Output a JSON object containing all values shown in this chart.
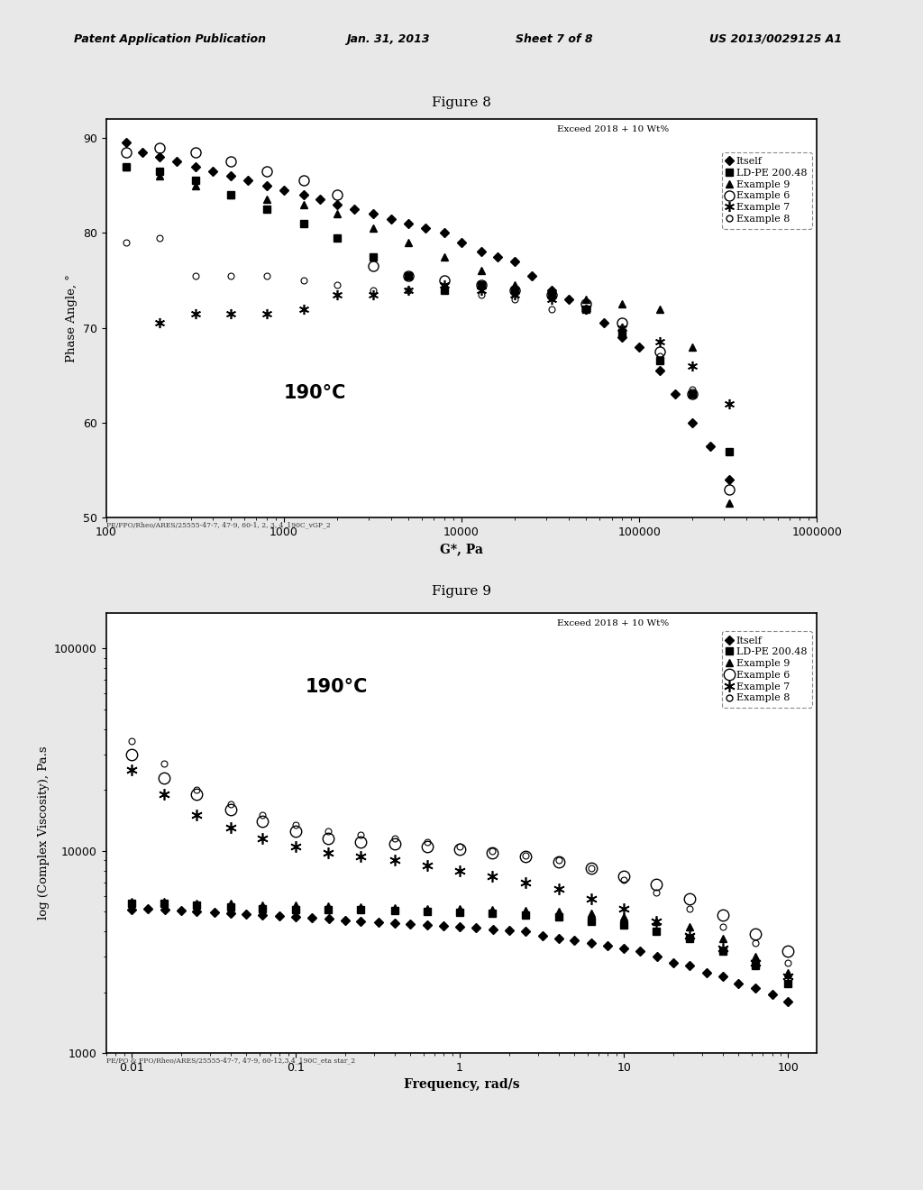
{
  "fig8_title": "Figure 8",
  "fig9_title": "Figure 9",
  "header_line1": "Patent Application Publication",
  "header_line2": "Jan. 31, 2013",
  "header_line3": "Sheet 7 of 8",
  "header_line4": "US 2013/0029125 A1",
  "legend_title": "Exceed 2018 + 10 Wt%",
  "temperature_label": "190°C",
  "fig8_xlabel": "G*, Pa",
  "fig8_ylabel": "Phase Angle, °",
  "fig9_xlabel": "Frequency, rad/s",
  "fig9_ylabel": "log (Complex Viscosity), Pa.s",
  "fig8_footnote": "PE/FPO/Rheo/ARES/25555-47-7, 47-9, 60-1, 2, 3, 4_190C_vGP_2",
  "fig9_footnote": "PE/PO & FPO/Rheo/ARES/25555-47-7, 47-9, 60-12,3,4_190C_eta star_2",
  "series_labels": [
    "Itself",
    "LD-PE 200.48",
    "Example 9",
    "Example 6",
    "Example 7",
    "Example 8"
  ],
  "fig8_itself_x": [
    130,
    160,
    200,
    250,
    320,
    400,
    500,
    630,
    800,
    1000,
    1300,
    1600,
    2000,
    2500,
    3200,
    4000,
    5000,
    6300,
    8000,
    10000,
    13000,
    16000,
    20000,
    25000,
    32000,
    40000,
    50000,
    63000,
    80000,
    100000,
    130000,
    160000,
    200000,
    250000,
    320000
  ],
  "fig8_itself_y": [
    89.5,
    88.5,
    88.0,
    87.5,
    87.0,
    86.5,
    86.0,
    85.5,
    85.0,
    84.5,
    84.0,
    83.5,
    83.0,
    82.5,
    82.0,
    81.5,
    81.0,
    80.5,
    80.0,
    79.0,
    78.0,
    77.5,
    77.0,
    75.5,
    74.0,
    73.0,
    72.0,
    70.5,
    69.0,
    68.0,
    65.5,
    63.0,
    60.0,
    57.5,
    54.0
  ],
  "fig8_ldpe_x": [
    130,
    200,
    320,
    500,
    800,
    1300,
    2000,
    3200,
    5000,
    8000,
    13000,
    20000,
    32000,
    50000,
    80000,
    130000,
    200000,
    320000
  ],
  "fig8_ldpe_y": [
    87.0,
    86.5,
    85.5,
    84.0,
    82.5,
    81.0,
    79.5,
    77.5,
    75.5,
    74.0,
    74.5,
    74.0,
    73.5,
    72.0,
    69.5,
    66.5,
    63.0,
    57.0
  ],
  "fig8_ex9_x": [
    130,
    200,
    320,
    500,
    800,
    1300,
    2000,
    3200,
    5000,
    8000,
    13000,
    20000,
    32000,
    50000,
    80000,
    130000,
    200000,
    320000
  ],
  "fig8_ex9_y": [
    87.0,
    86.0,
    85.0,
    84.0,
    83.5,
    83.0,
    82.0,
    80.5,
    79.0,
    77.5,
    76.0,
    74.5,
    73.5,
    73.0,
    72.5,
    72.0,
    68.0,
    51.5
  ],
  "fig8_ex6_x": [
    130,
    200,
    320,
    500,
    800,
    1300,
    2000,
    3200,
    5000,
    8000,
    13000,
    20000,
    32000,
    50000,
    80000,
    130000,
    200000,
    320000
  ],
  "fig8_ex6_y": [
    88.5,
    89.0,
    88.5,
    87.5,
    86.5,
    85.5,
    84.0,
    76.5,
    75.5,
    75.0,
    74.5,
    74.0,
    73.5,
    72.5,
    70.5,
    67.5,
    63.0,
    53.0
  ],
  "fig8_ex7_x": [
    200,
    320,
    500,
    800,
    1300,
    2000,
    3200,
    5000,
    8000,
    13000,
    20000,
    32000,
    50000,
    80000,
    130000,
    200000,
    320000
  ],
  "fig8_ex7_y": [
    70.5,
    71.5,
    71.5,
    71.5,
    72.0,
    73.5,
    73.5,
    74.0,
    74.5,
    74.0,
    73.5,
    73.0,
    72.0,
    70.0,
    68.5,
    66.0,
    62.0
  ],
  "fig8_ex8_x": [
    130,
    200,
    320,
    500,
    800,
    1300,
    2000,
    3200,
    5000,
    8000,
    13000,
    20000,
    32000,
    50000,
    80000,
    130000,
    200000,
    320000
  ],
  "fig8_ex8_y": [
    79.0,
    79.5,
    75.5,
    75.5,
    75.5,
    75.0,
    74.5,
    74.0,
    74.0,
    74.0,
    73.5,
    73.0,
    72.0,
    72.0,
    70.0,
    67.0,
    63.5,
    57.0
  ],
  "fig9_itself_x": [
    0.01,
    0.0126,
    0.016,
    0.02,
    0.025,
    0.032,
    0.04,
    0.05,
    0.063,
    0.08,
    0.1,
    0.126,
    0.16,
    0.2,
    0.25,
    0.32,
    0.4,
    0.5,
    0.63,
    0.8,
    1.0,
    1.26,
    1.6,
    2.0,
    2.5,
    3.2,
    4.0,
    5.0,
    6.3,
    8.0,
    10.0,
    12.6,
    16.0,
    20.0,
    25.0,
    32.0,
    40.0,
    50.0,
    63.0,
    80.0,
    100.0
  ],
  "fig9_itself_y": [
    5100,
    5200,
    5100,
    5050,
    5000,
    4950,
    4900,
    4850,
    4800,
    4750,
    4700,
    4650,
    4600,
    4550,
    4500,
    4450,
    4400,
    4350,
    4300,
    4250,
    4200,
    4150,
    4100,
    4050,
    4000,
    3800,
    3700,
    3600,
    3500,
    3400,
    3300,
    3200,
    3000,
    2800,
    2700,
    2500,
    2400,
    2200,
    2100,
    1950,
    1800
  ],
  "fig9_ldpe_x": [
    0.01,
    0.0158,
    0.025,
    0.04,
    0.063,
    0.1,
    0.158,
    0.25,
    0.4,
    0.63,
    1.0,
    1.58,
    2.5,
    4.0,
    6.3,
    10.0,
    15.8,
    25.0,
    40.0,
    63.0,
    100.0
  ],
  "fig9_ldpe_y": [
    5500,
    5500,
    5400,
    5300,
    5200,
    5100,
    5100,
    5100,
    5050,
    5000,
    4950,
    4900,
    4800,
    4700,
    4500,
    4300,
    4000,
    3700,
    3200,
    2700,
    2200
  ],
  "fig9_ex9_x": [
    0.01,
    0.0158,
    0.025,
    0.04,
    0.063,
    0.1,
    0.158,
    0.25,
    0.4,
    0.63,
    1.0,
    1.58,
    2.5,
    4.0,
    6.3,
    10.0,
    15.8,
    25.0,
    40.0,
    63.0,
    100.0
  ],
  "fig9_ex9_y": [
    5600,
    5600,
    5500,
    5500,
    5400,
    5400,
    5350,
    5300,
    5250,
    5200,
    5150,
    5100,
    5050,
    5000,
    4900,
    4700,
    4500,
    4200,
    3700,
    3000,
    2500
  ],
  "fig9_ex6_x": [
    0.01,
    0.0158,
    0.025,
    0.04,
    0.063,
    0.1,
    0.158,
    0.25,
    0.4,
    0.63,
    1.0,
    1.58,
    2.5,
    4.0,
    6.3,
    10.0,
    15.8,
    25.0,
    40.0,
    63.0,
    100.0
  ],
  "fig9_ex6_y": [
    30000,
    23000,
    19000,
    16000,
    14000,
    12500,
    11500,
    11000,
    10800,
    10500,
    10200,
    9800,
    9400,
    8800,
    8200,
    7500,
    6800,
    5800,
    4800,
    3900,
    3200
  ],
  "fig9_ex7_x": [
    0.01,
    0.0158,
    0.025,
    0.04,
    0.063,
    0.1,
    0.158,
    0.25,
    0.4,
    0.63,
    1.0,
    1.58,
    2.5,
    4.0,
    6.3,
    10.0,
    15.8,
    25.0,
    40.0,
    63.0,
    100.0
  ],
  "fig9_ex7_y": [
    25000,
    19000,
    15000,
    13000,
    11500,
    10500,
    9800,
    9400,
    9000,
    8500,
    8000,
    7500,
    7000,
    6500,
    5800,
    5200,
    4500,
    3800,
    3300,
    2800,
    2400
  ],
  "fig9_ex8_x": [
    0.01,
    0.0158,
    0.025,
    0.04,
    0.063,
    0.1,
    0.158,
    0.25,
    0.4,
    0.63,
    1.0,
    1.58,
    2.5,
    4.0,
    6.3,
    10.0,
    15.8,
    25.0,
    40.0,
    63.0,
    100.0
  ],
  "fig9_ex8_y": [
    35000,
    27000,
    20000,
    17000,
    15000,
    13500,
    12500,
    12000,
    11500,
    11000,
    10500,
    10000,
    9500,
    9000,
    8200,
    7200,
    6200,
    5200,
    4200,
    3500,
    2800
  ],
  "bg_color": "#e8e8e8",
  "plot_bg_color": "#ffffff"
}
